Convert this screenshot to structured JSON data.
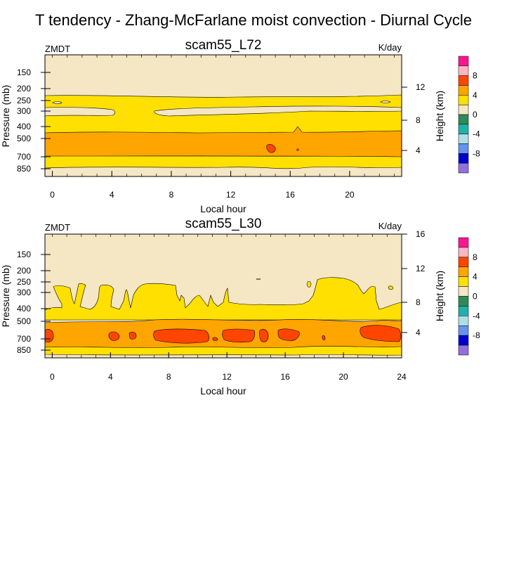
{
  "figure_title": "T tendency - Zhang-McFarlane moist convection - Diurnal Cycle",
  "colors": {
    "background_zero": "#F5E6C4",
    "contour_line": "#000000",
    "frame": "#000000"
  },
  "colorbar": {
    "title": "",
    "levels": [
      -10,
      -8,
      -6,
      -4,
      -2,
      0,
      2,
      4,
      6,
      8,
      10
    ],
    "labels": [
      "8",
      "4",
      "0",
      "-4",
      "-8"
    ],
    "colors_top_to_bottom": [
      "#FF1493",
      "#FFB6C1",
      "#FF4500",
      "#FFA500",
      "#FFE000",
      "#F5E6C4",
      "#2E8B57",
      "#20B2AA",
      "#AEDFE6",
      "#6495ED",
      "#0000CD",
      "#9370DB"
    ]
  },
  "chart_data": [
    {
      "type": "heatmap",
      "title": "scam55_L72",
      "variable_label": "ZMDT",
      "units_label": "K/day",
      "xlabel": "Local hour",
      "ylabel": "Pressure (mb)",
      "right_axis_label": "Height (km)",
      "xlim": [
        -0.5,
        23.5
      ],
      "x_ticks": [
        0,
        4,
        8,
        12,
        16,
        20
      ],
      "x_tick_labels": [
        "0",
        "4",
        "8",
        "12",
        "16",
        "20"
      ],
      "y_scale": "log-pressure",
      "ylim": [
        1000,
        100
      ],
      "y_ticks": [
        150,
        200,
        250,
        300,
        400,
        500,
        700,
        850
      ],
      "y_tick_labels": [
        "150",
        "200",
        "250",
        "300",
        "400",
        "500",
        "700",
        "850"
      ],
      "right_ticks": [
        4,
        8,
        12
      ],
      "right_tick_labels": [
        "4",
        "8",
        "12"
      ],
      "bands": [
        {
          "from": 100,
          "to": 228,
          "value": 0
        },
        {
          "from": 228,
          "to": 263,
          "value": 2
        },
        {
          "from": 263,
          "to": 330,
          "value": 0.5
        },
        {
          "from": 330,
          "to": 455,
          "value": 2
        },
        {
          "from": 455,
          "to": 700,
          "value": 4
        },
        {
          "from": 700,
          "to": 860,
          "value": 2
        },
        {
          "from": 860,
          "to": 1000,
          "value": 0
        }
      ],
      "features": [
        {
          "hour": 15.0,
          "pressure": 620,
          "value": 6
        },
        {
          "hour": 0.5,
          "pressure": 255,
          "value": 0
        },
        {
          "hour": 22.8,
          "pressure": 250,
          "value": 0
        },
        {
          "hour": 16.8,
          "pressure": 440,
          "value": 4
        }
      ]
    },
    {
      "type": "heatmap",
      "title": "scam55_L30",
      "variable_label": "ZMDT",
      "units_label": "K/day",
      "xlabel": "Local hour",
      "ylabel": "Pressure (mb)",
      "right_axis_label": "Height (km)",
      "xlim": [
        -0.5,
        24
      ],
      "x_ticks": [
        0,
        4,
        8,
        12,
        16,
        20,
        24
      ],
      "x_tick_labels": [
        "0",
        "4",
        "8",
        "12",
        "16",
        "20",
        "24"
      ],
      "y_scale": "log-pressure",
      "ylim": [
        1000,
        100
      ],
      "y_ticks": [
        150,
        200,
        250,
        300,
        400,
        500,
        700,
        850
      ],
      "y_tick_labels": [
        "150",
        "200",
        "250",
        "300",
        "400",
        "500",
        "700",
        "850"
      ],
      "right_ticks": [
        4,
        8,
        12,
        16
      ],
      "right_tick_labels": [
        "4",
        "8",
        "12",
        "16"
      ],
      "bands": [
        {
          "from": 100,
          "to": 280,
          "value": 0
        },
        {
          "from": 280,
          "to": 440,
          "value": 2
        },
        {
          "from": 440,
          "to": 580,
          "value": 4
        },
        {
          "from": 580,
          "to": 760,
          "value": 4
        },
        {
          "from": 760,
          "to": 870,
          "value": 2
        },
        {
          "from": 870,
          "to": 1000,
          "value": 0
        }
      ],
      "features": [
        {
          "hour": 0.1,
          "pressure": 640,
          "value": 6
        },
        {
          "hour": 4.3,
          "pressure": 650,
          "value": 6
        },
        {
          "hour": 5.5,
          "pressure": 650,
          "value": 6
        },
        {
          "hour": 8.5,
          "pressure": 670,
          "value": 6
        },
        {
          "hour": 12.5,
          "pressure": 650,
          "value": 6
        },
        {
          "hour": 15.2,
          "pressure": 650,
          "value": 6
        },
        {
          "hour": 17.0,
          "pressure": 650,
          "value": 6
        },
        {
          "hour": 22.5,
          "pressure": 640,
          "value": 6
        }
      ]
    }
  ]
}
